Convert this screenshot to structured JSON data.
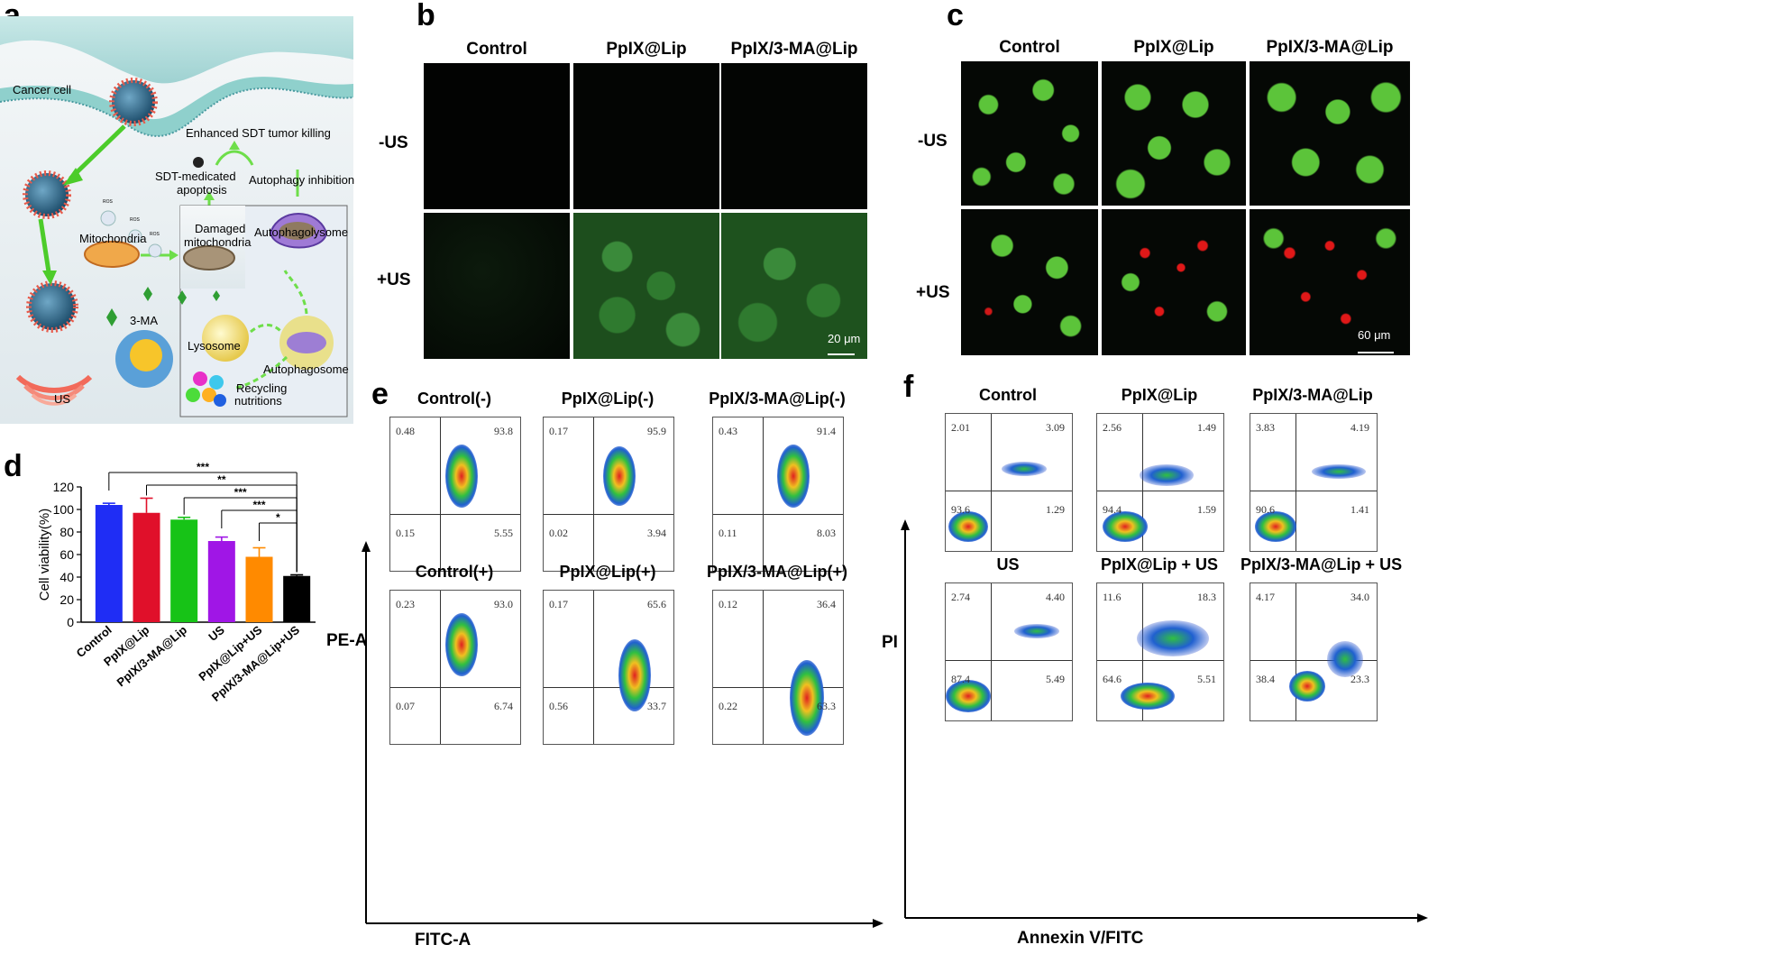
{
  "panel_labels": {
    "a": "a",
    "b": "b",
    "c": "c",
    "d": "d",
    "e": "e",
    "f": "f"
  },
  "schematic": {
    "cancer_cell": "Cancer cell",
    "enhanced": "Enhanced SDT tumor killing",
    "sdt_apoptosis_1": "SDT-medicated",
    "sdt_apoptosis_2": "apoptosis",
    "autophagy_inhibition": "Autophagy inhibition",
    "mitochondria": "Mitochondria",
    "damaged_1": "Damaged",
    "damaged_2": "mitochondria",
    "autophagolysome": "Autophagolysome",
    "three_ma": "3-MA",
    "lysosome": "Lysosome",
    "autophagosome": "Autophagosome",
    "recycling_1": "Recycling",
    "recycling_2": "nutritions",
    "us": "US",
    "ros": "ROS"
  },
  "panel_b": {
    "columns": [
      "Control",
      "PpIX@Lip",
      "PpIX/3-MA@Lip"
    ],
    "rows": [
      "-US",
      "+US"
    ],
    "scale": "20 μm"
  },
  "panel_c": {
    "columns": [
      "Control",
      "PpIX@Lip",
      "PpIX/3-MA@Lip"
    ],
    "rows": [
      "-US",
      "+US"
    ],
    "scale": "60 μm"
  },
  "chart_data": {
    "type": "bar",
    "categories": [
      "Control",
      "PpIX@Lip",
      "PpIX/3-MA@Lip",
      "US",
      "PpIX@Lip+US",
      "PpIX/3-MA@Lip+US"
    ],
    "values": [
      104,
      97,
      91,
      72,
      58,
      41
    ],
    "errors": [
      1.5,
      13,
      2,
      3.5,
      8,
      1
    ],
    "colors": [
      "#1f2df5",
      "#e0102a",
      "#17c317",
      "#a016e6",
      "#ff8a00",
      "#000000"
    ],
    "ylabel": "Cell viability(%)",
    "yticks": [
      0,
      20,
      40,
      60,
      80,
      100,
      120
    ],
    "ylim": [
      0,
      120
    ],
    "significance": [
      {
        "from": 0,
        "to": 5,
        "label": "***"
      },
      {
        "from": 1,
        "to": 5,
        "label": "**"
      },
      {
        "from": 2,
        "to": 5,
        "label": "***"
      },
      {
        "from": 3,
        "to": 5,
        "label": "***"
      },
      {
        "from": 4,
        "to": 5,
        "label": "*"
      }
    ]
  },
  "panel_e": {
    "xlabel": "FITC-A",
    "ylabel": "PE-A",
    "plots": [
      {
        "title": "Control(-)",
        "q": [
          "0.48",
          "93.8",
          "0.15",
          "5.55"
        ]
      },
      {
        "title": "PpIX@Lip(-)",
        "q": [
          "0.17",
          "95.9",
          "0.02",
          "3.94"
        ]
      },
      {
        "title": "PpIX/3-MA@Lip(-)",
        "q": [
          "0.43",
          "91.4",
          "0.11",
          "8.03"
        ]
      },
      {
        "title": "Control(+)",
        "q": [
          "0.23",
          "93.0",
          "0.07",
          "6.74"
        ]
      },
      {
        "title": "PpIX@Lip(+)",
        "q": [
          "0.17",
          "65.6",
          "0.56",
          "33.7"
        ]
      },
      {
        "title": "PpIX/3-MA@Lip(+)",
        "q": [
          "0.12",
          "36.4",
          "0.22",
          "63.3"
        ]
      }
    ]
  },
  "panel_f": {
    "xlabel": "Annexin V/FITC",
    "ylabel": "PI",
    "plots": [
      {
        "title": "Control",
        "q": [
          "2.01",
          "3.09",
          "93.6",
          "1.29"
        ]
      },
      {
        "title": "PpIX@Lip",
        "q": [
          "2.56",
          "1.49",
          "94.4",
          "1.59"
        ]
      },
      {
        "title": "PpIX/3-MA@Lip",
        "q": [
          "3.83",
          "4.19",
          "90.6",
          "1.41"
        ]
      },
      {
        "title": "US",
        "q": [
          "2.74",
          "4.40",
          "87.4",
          "5.49"
        ]
      },
      {
        "title": "PpIX@Lip + US",
        "q": [
          "11.6",
          "18.3",
          "64.6",
          "5.51"
        ]
      },
      {
        "title": "PpIX/3-MA@Lip + US",
        "q": [
          "4.17",
          "34.0",
          "38.4",
          "23.3"
        ]
      }
    ]
  }
}
